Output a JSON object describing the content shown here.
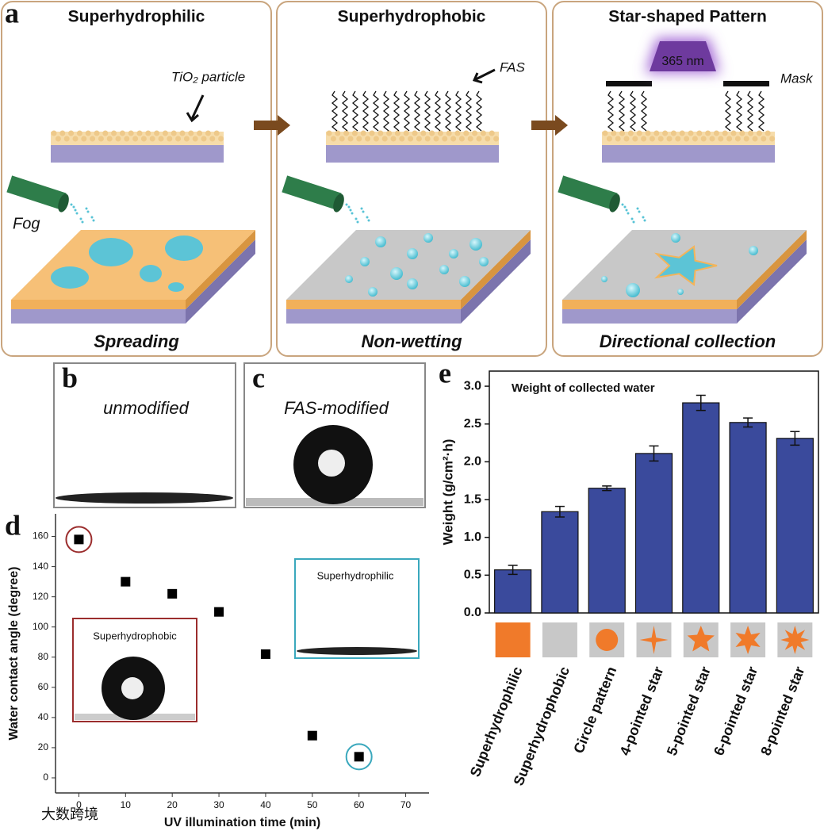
{
  "panel_labels": [
    "a",
    "b",
    "c",
    "d",
    "e"
  ],
  "panel_a": {
    "steps": [
      {
        "title": "Superhydrophilic",
        "caption": "Spreading"
      },
      {
        "title": "Superhydrophobic",
        "caption": "Non-wetting"
      },
      {
        "title": "Star-shaped Pattern",
        "caption": "Directional collection"
      }
    ],
    "labels": {
      "particle": "TiO₂ particle",
      "fas": "FAS",
      "uv": "365 nm",
      "mask": "Mask",
      "fog": "Fog"
    }
  },
  "panel_b": {
    "label": "unmodified"
  },
  "panel_c": {
    "label": "FAS-modified"
  },
  "watermark": "大数跨境",
  "chart_data": [
    {
      "type": "scatter",
      "x_label": "UV illumination time (min)",
      "y_label": "Water contact angle (degree)",
      "x": [
        0,
        10,
        20,
        30,
        40,
        50,
        60
      ],
      "values": [
        158,
        130,
        122,
        110,
        82,
        28,
        14
      ],
      "color": "#000000",
      "xlim": [
        -5,
        75
      ],
      "ylim": [
        -10,
        175
      ],
      "xticks": [
        0,
        10,
        20,
        30,
        40,
        50,
        60,
        70
      ],
      "yticks": [
        0,
        20,
        40,
        60,
        80,
        100,
        120,
        140,
        160
      ],
      "insets": [
        "Superhydrophobic",
        "Superhydrophilic"
      ]
    },
    {
      "type": "bar",
      "title": "Weight of collected water",
      "y_label": "Weight (g/cm²·h)",
      "categories": [
        "Superhydrophilic",
        "Superhydrophobic",
        "Circle pattern",
        "4-pointed star",
        "5-pointed star",
        "6-pointed star",
        "8-pointed star"
      ],
      "values": [
        0.57,
        1.34,
        1.65,
        2.11,
        2.78,
        2.52,
        2.31
      ],
      "errors": [
        0.06,
        0.07,
        0.03,
        0.1,
        0.1,
        0.06,
        0.09
      ],
      "color": "#3a4a9c",
      "ylim": [
        0,
        3.2
      ],
      "yticks": [
        {
          "value": 0,
          "label": "0.0"
        },
        {
          "value": 0.5,
          "label": "0.5"
        },
        {
          "value": 1,
          "label": "1.0"
        },
        {
          "value": 1.5,
          "label": "1.5"
        },
        {
          "value": 2,
          "label": "2.0"
        },
        {
          "value": 2.5,
          "label": "2.5"
        },
        {
          "value": 3,
          "label": "3.0"
        }
      ]
    }
  ]
}
